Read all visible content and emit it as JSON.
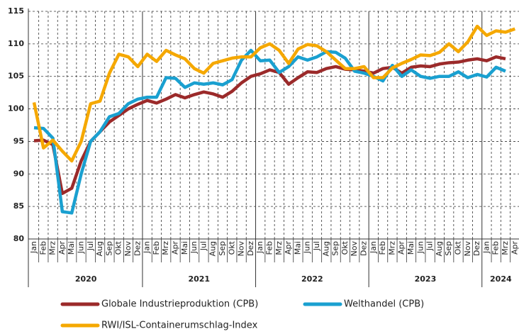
{
  "chart_data": {
    "type": "line",
    "categories": [
      "Jan",
      "Feb",
      "Mrz",
      "Apr",
      "Mai",
      "Jun",
      "Jul",
      "Aug",
      "Sep",
      "Okt",
      "Nov",
      "Dez",
      "Jan",
      "Feb",
      "Mrz",
      "Apr",
      "Mai",
      "Jun",
      "Jul",
      "Aug",
      "Sep",
      "Okt",
      "Nov",
      "Dez",
      "Jan",
      "Feb",
      "Mrz",
      "Apr",
      "Mai",
      "Jun",
      "Jul",
      "Aug",
      "Sep",
      "Okt",
      "Nov",
      "Dez",
      "Jan",
      "Feb",
      "Mrz",
      "Apr",
      "Mai",
      "Jun",
      "Jul",
      "Aug",
      "Sep",
      "Okt",
      "Nov",
      "Dez",
      "Jan",
      "Feb",
      "Mrz",
      "Apr"
    ],
    "years": [
      "2020",
      "2021",
      "2022",
      "2023",
      "2024"
    ],
    "series": [
      {
        "name": "Globale Industrieproduktion (CPB)",
        "color": "#9b2a2a",
        "values": [
          95.1,
          95.2,
          94.5,
          87,
          87.8,
          92,
          95,
          96.5,
          98,
          99,
          100,
          100.7,
          101.3,
          100.9,
          101.5,
          102.2,
          101.7,
          102.2,
          102.6,
          102.3,
          101.8,
          102.7,
          104,
          105,
          105.4,
          106,
          105.6,
          103.8,
          104.8,
          105.7,
          105.6,
          106.2,
          106.5,
          106.1,
          106,
          105.8,
          105.5,
          106.2,
          106.4,
          105.5,
          106.4,
          106.6,
          106.5,
          106.9,
          107.1,
          107.2,
          107.5,
          107.7,
          107.4,
          108,
          107.7,
          null
        ]
      },
      {
        "name": "Welthandel (CPB)",
        "color": "#1aa0d0",
        "values": [
          97.1,
          97,
          95.5,
          84.2,
          84,
          90,
          95,
          96.5,
          98.8,
          99.3,
          100.8,
          101.5,
          101.8,
          101.8,
          104.8,
          104.7,
          103.3,
          104,
          103.8,
          104,
          103.7,
          104.5,
          107.5,
          109,
          107.4,
          107.5,
          105.6,
          106.5,
          108,
          107.5,
          108,
          108.8,
          108.7,
          107.8,
          105.8,
          105.5,
          105,
          104.3,
          106.7,
          105,
          106,
          105,
          104.7,
          105,
          105,
          105.7,
          104.8,
          105.3,
          104.9,
          106.4,
          105.8,
          null
        ]
      },
      {
        "name": "RWI/ISL-Containerumschlag-Index",
        "color": "#f5a800",
        "values": [
          101,
          94,
          95.2,
          93.5,
          92,
          95,
          100.8,
          101.2,
          105.5,
          108.4,
          108,
          106.5,
          108.4,
          107.3,
          109,
          108.3,
          107.7,
          106.2,
          105.5,
          107,
          107.4,
          107.8,
          108,
          108,
          109.4,
          110,
          109,
          107,
          109.2,
          109.9,
          109.7,
          108.8,
          107.5,
          106.2,
          106.2,
          106.5,
          104.8,
          104.8,
          106.3,
          107,
          107.6,
          108.3,
          108.2,
          108.7,
          110,
          108.8,
          110.3,
          112.7,
          111.3,
          112,
          111.8,
          112.3
        ]
      }
    ],
    "ylim": [
      80,
      115
    ],
    "yticks": [
      80,
      85,
      90,
      95,
      100,
      105,
      110,
      115
    ],
    "grid": true
  }
}
